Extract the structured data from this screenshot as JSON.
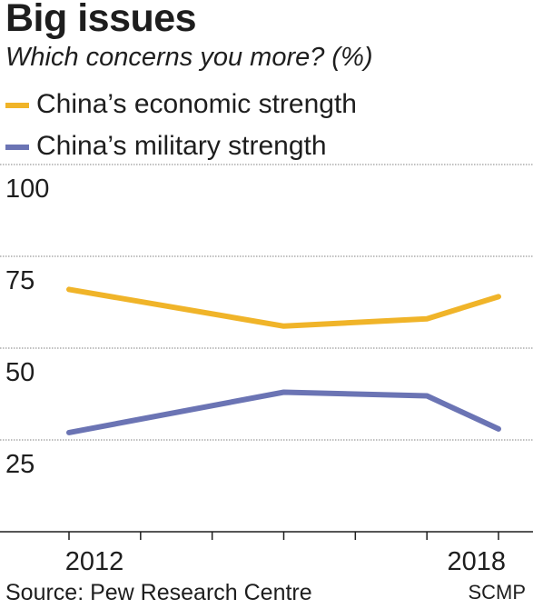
{
  "title": "Big issues",
  "subtitle": "Which concerns you more? (%)",
  "source": "Source: Pew Research Centre",
  "credit": "SCMP",
  "colors": {
    "economic": "#f0b429",
    "military": "#6b74b4",
    "grid": "#9a9a9a",
    "axis": "#1e1e1e"
  },
  "chart_data": {
    "type": "line",
    "title": "Big issues",
    "subtitle": "Which concerns you more? (%)",
    "xlabel": "",
    "ylabel": "",
    "x": [
      2012,
      2015,
      2017,
      2018
    ],
    "x_ticks_labeled": [
      "2012",
      "2018"
    ],
    "x_range": [
      2012,
      2018
    ],
    "ylim": [
      0,
      100
    ],
    "y_ticks": [
      25,
      50,
      75,
      100
    ],
    "grid": true,
    "legend_position": "top-left",
    "series": [
      {
        "name": "China’s economic strength",
        "values": [
          66,
          56,
          58,
          64
        ]
      },
      {
        "name": "China’s military strength",
        "values": [
          27,
          38,
          37,
          28
        ]
      }
    ]
  }
}
